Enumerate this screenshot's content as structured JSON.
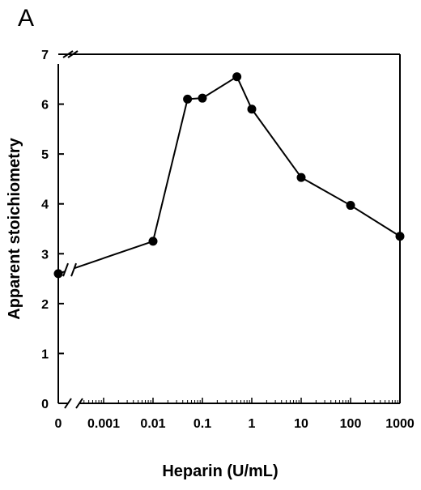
{
  "panel_label": "A",
  "chart_data": {
    "type": "line",
    "xlabel": "Heparin (U/mL)",
    "ylabel": "Apparent stoichiometry",
    "x_scale": "log (broken axis; 0 shown separately before break)",
    "ylim": [
      0,
      7
    ],
    "yticks": [
      0,
      1,
      2,
      3,
      4,
      5,
      6,
      7
    ],
    "xtick_labels": [
      "0",
      "0.001",
      "0.01",
      "0.1",
      "1",
      "10",
      "100",
      "1000"
    ],
    "xlim": [
      0.0003,
      1000
    ],
    "grid": false,
    "legend": "none",
    "axis_breaks": [
      "x-axis near 0",
      "y-axis near 7 (top)",
      "plotted line between x=0 and x=0.01"
    ],
    "series": [
      {
        "x": [
          0,
          0.01,
          0.05,
          0.1,
          0.5,
          1,
          10,
          100,
          1000
        ],
        "y": [
          2.6,
          3.25,
          6.1,
          6.12,
          6.55,
          5.9,
          4.53,
          3.97,
          3.35
        ],
        "marker": "filled-circle",
        "color": "#000000"
      }
    ]
  }
}
